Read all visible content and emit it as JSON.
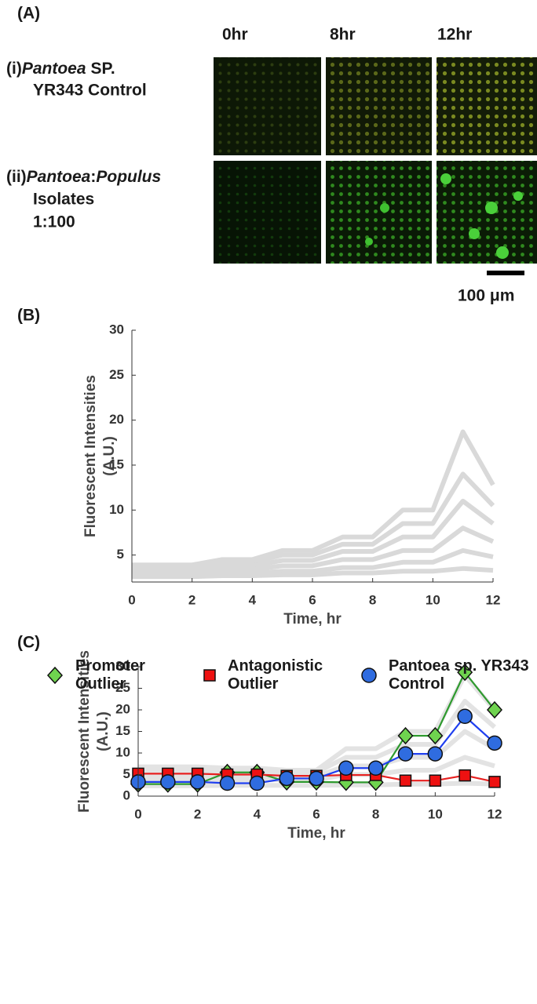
{
  "panel_a": {
    "label": "(A)",
    "times": [
      "0hr",
      "8hr",
      "12hr"
    ],
    "rows": [
      {
        "prefix": "(i)",
        "species": "Pantoea",
        "suffix": "SP.",
        "line2": "YR343 Control"
      },
      {
        "prefix": "(ii)",
        "species": "Pantoea",
        "sep": ":",
        "species2": "Populus",
        "line2": "Isolates",
        "line3": "1:100"
      }
    ],
    "scale_bar": "100 μm"
  },
  "chart_data": [
    {
      "type": "line",
      "panel": "(B)",
      "xlabel": "Time, hr",
      "ylabel": [
        "Fluorescent Intensities",
        "(A.U.)"
      ],
      "x": [
        0,
        1,
        2,
        3,
        4,
        5,
        6,
        7,
        8,
        9,
        10,
        11,
        12
      ],
      "xlim": [
        0,
        12
      ],
      "xticks": [
        0,
        2,
        4,
        6,
        8,
        10,
        12
      ],
      "ylim": [
        2,
        30
      ],
      "yticks": [
        5,
        10,
        15,
        20,
        25,
        30
      ],
      "series": [
        {
          "color": "#d9d9d9",
          "values": [
            3.9,
            3.9,
            3.9,
            4.5,
            4.5,
            5.5,
            5.5,
            7,
            7,
            10,
            10,
            18.7,
            12.8
          ]
        },
        {
          "color": "#d9d9d9",
          "values": [
            3.6,
            3.6,
            3.6,
            4.2,
            4.2,
            5,
            5,
            6.2,
            6.2,
            8.5,
            8.5,
            14,
            10.5
          ]
        },
        {
          "color": "#d9d9d9",
          "values": [
            3.3,
            3.3,
            3.3,
            3.8,
            3.8,
            4.4,
            4.4,
            5.4,
            5.4,
            7,
            7,
            11,
            8.5
          ]
        },
        {
          "color": "#d9d9d9",
          "values": [
            3.1,
            3.1,
            3.1,
            3.4,
            3.4,
            3.8,
            3.8,
            4.5,
            4.5,
            5.5,
            5.5,
            8,
            6.5
          ]
        },
        {
          "color": "#d9d9d9",
          "values": [
            2.8,
            2.8,
            2.8,
            3,
            3,
            3.2,
            3.2,
            3.6,
            3.6,
            4.2,
            4.2,
            5.5,
            4.8
          ]
        },
        {
          "color": "#d9d9d9",
          "values": [
            2.6,
            2.6,
            2.6,
            2.7,
            2.7,
            2.8,
            2.8,
            3,
            3,
            3.2,
            3.2,
            3.5,
            3.3
          ]
        }
      ]
    },
    {
      "type": "line",
      "panel": "(C)",
      "xlabel": "Time, hr",
      "ylabel": [
        "Fluorescent Intensities",
        "(A.U.)"
      ],
      "x": [
        0,
        1,
        2,
        3,
        4,
        5,
        6,
        7,
        8,
        9,
        10,
        11,
        12
      ],
      "xlim": [
        0,
        12
      ],
      "xticks": [
        0,
        2,
        4,
        6,
        8,
        10,
        12
      ],
      "ylim": [
        0,
        30
      ],
      "yticks": [
        0,
        5,
        10,
        15,
        20,
        25,
        30
      ],
      "series": [
        {
          "color": "#e3e3e3",
          "values": [
            6.8,
            6.8,
            6.8,
            6.5,
            6.5,
            6,
            6,
            11,
            11,
            15,
            15,
            28,
            20
          ]
        },
        {
          "color": "#e3e3e3",
          "values": [
            5.8,
            5.8,
            5.8,
            5.8,
            5.8,
            5.5,
            5.5,
            9,
            9,
            12,
            12,
            22,
            16
          ]
        },
        {
          "color": "#e3e3e3",
          "values": [
            4.5,
            4.5,
            4.5,
            4.8,
            4.8,
            4.6,
            4.6,
            7,
            7,
            9,
            9,
            15,
            11
          ]
        },
        {
          "color": "#e3e3e3",
          "values": [
            3.5,
            3.5,
            3.5,
            3.8,
            3.8,
            3.8,
            3.8,
            5,
            5,
            6,
            6,
            9,
            7
          ]
        },
        {
          "color": "#e3e3e3",
          "values": [
            2.4,
            2.4,
            2.4,
            2.5,
            2.5,
            2.5,
            2.5,
            2.6,
            2.6,
            2.8,
            2.8,
            3,
            2.8
          ]
        },
        {
          "name": "Promoter Outlier",
          "color": "#2e9a2e",
          "marker": "diamond",
          "marker_color": "#6fd34f",
          "values": [
            2.8,
            2.8,
            2.8,
            5.5,
            5.5,
            3.3,
            3.3,
            3.2,
            3.2,
            14,
            14,
            28.7,
            20
          ]
        },
        {
          "name": "Antagonistic Outlier",
          "color": "#e82020",
          "marker": "square",
          "marker_color": "#ee1111",
          "values": [
            5.2,
            5.2,
            5.2,
            5,
            5,
            4.7,
            4.7,
            4.9,
            4.9,
            3.6,
            3.6,
            4.8,
            3.3
          ]
        },
        {
          "name": "Pantoea sp. YR343 Control",
          "color": "#1f3ff0",
          "marker": "circle",
          "marker_color": "#2f6ce0",
          "values": [
            3.3,
            3.3,
            3.3,
            3,
            3,
            4.1,
            4.1,
            6.5,
            6.5,
            9.8,
            9.8,
            18.5,
            12.3
          ]
        }
      ]
    }
  ]
}
